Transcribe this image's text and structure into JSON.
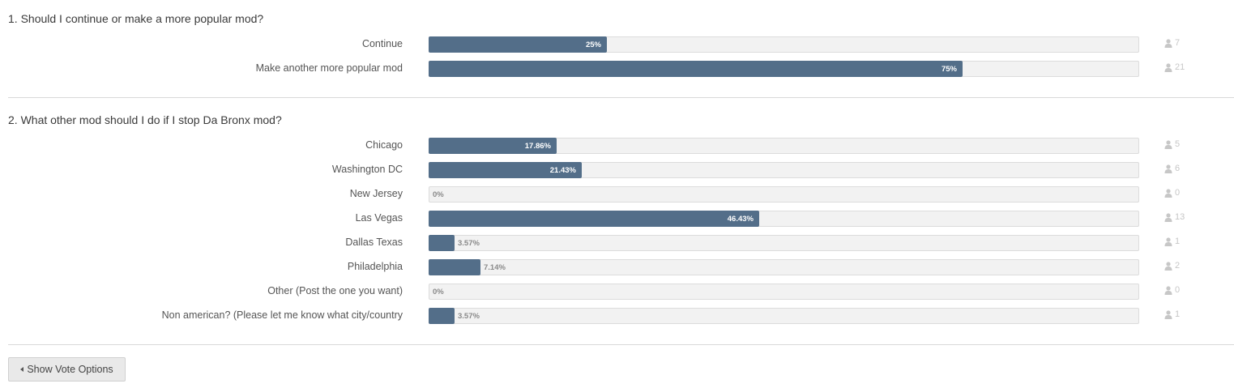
{
  "questions": [
    {
      "title": "1. Should I continue or make a more popular mod?",
      "options": [
        {
          "label": "Continue",
          "percent": 25,
          "percent_text": "25%",
          "votes": "7"
        },
        {
          "label": "Make another more popular mod",
          "percent": 75,
          "percent_text": "75%",
          "votes": "21"
        }
      ]
    },
    {
      "title": "2. What other mod should I do if I stop Da Bronx mod?",
      "options": [
        {
          "label": "Chicago",
          "percent": 17.86,
          "percent_text": "17.86%",
          "votes": "5"
        },
        {
          "label": "Washington DC",
          "percent": 21.43,
          "percent_text": "21.43%",
          "votes": "6"
        },
        {
          "label": "New Jersey",
          "percent": 0,
          "percent_text": "0%",
          "votes": "0"
        },
        {
          "label": "Las Vegas",
          "percent": 46.43,
          "percent_text": "46.43%",
          "votes": "13"
        },
        {
          "label": "Dallas Texas",
          "percent": 3.57,
          "percent_text": "3.57%",
          "votes": "1"
        },
        {
          "label": "Philadelphia",
          "percent": 7.14,
          "percent_text": "7.14%",
          "votes": "2"
        },
        {
          "label": "Other (Post the one you want)",
          "percent": 0,
          "percent_text": "0%",
          "votes": "0"
        },
        {
          "label": "Non american? (Please let me know what city/country",
          "percent": 3.57,
          "percent_text": "3.57%",
          "votes": "1"
        }
      ]
    }
  ],
  "show_vote_button": {
    "label": "Show Vote Options",
    "icon": "caret-left-icon"
  },
  "vote_count_icon": "user-icon",
  "colors": {
    "bar_fill": "#536e89",
    "bar_track": "#f2f2f2"
  }
}
